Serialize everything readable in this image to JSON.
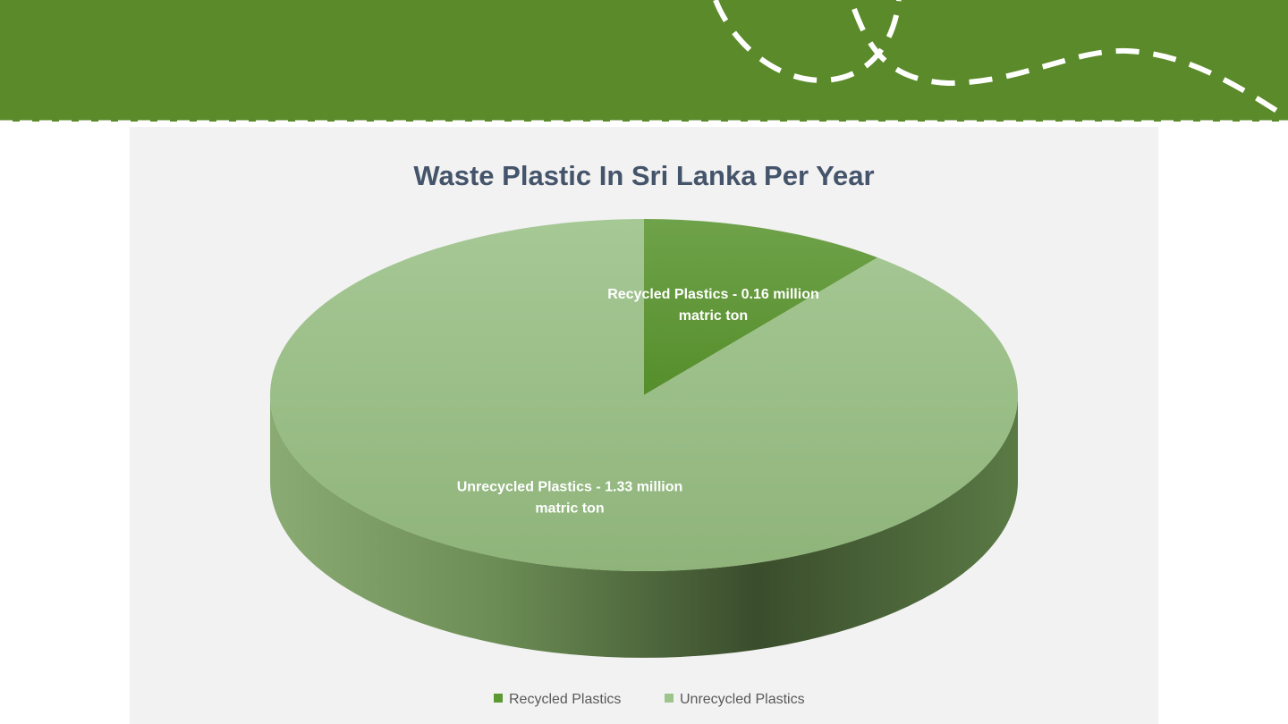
{
  "colors": {
    "banner": "#5b8a2a",
    "background": "#f2f2f2",
    "recycled": "#5b9a32",
    "unrecycled": "#9dc48b",
    "title": "#44546a"
  },
  "chart_data": {
    "type": "pie",
    "style": "3d",
    "title": "Waste Plastic In Sri Lanka Per Year",
    "unit": "million matric ton",
    "legend_position": "bottom",
    "slices": [
      {
        "name": "Recycled Plastics",
        "value": 0.16,
        "color": "#5b9a32",
        "label_lines": [
          "Recycled Plastics - 0.16 million",
          "matric ton"
        ]
      },
      {
        "name": "Unrecycled Plastics",
        "value": 1.33,
        "color": "#9dc48b",
        "label_lines": [
          "Unrecycled Plastics - 1.33 million",
          "matric ton"
        ]
      }
    ],
    "legend": [
      "Recycled Plastics",
      "Unrecycled Plastics"
    ]
  }
}
